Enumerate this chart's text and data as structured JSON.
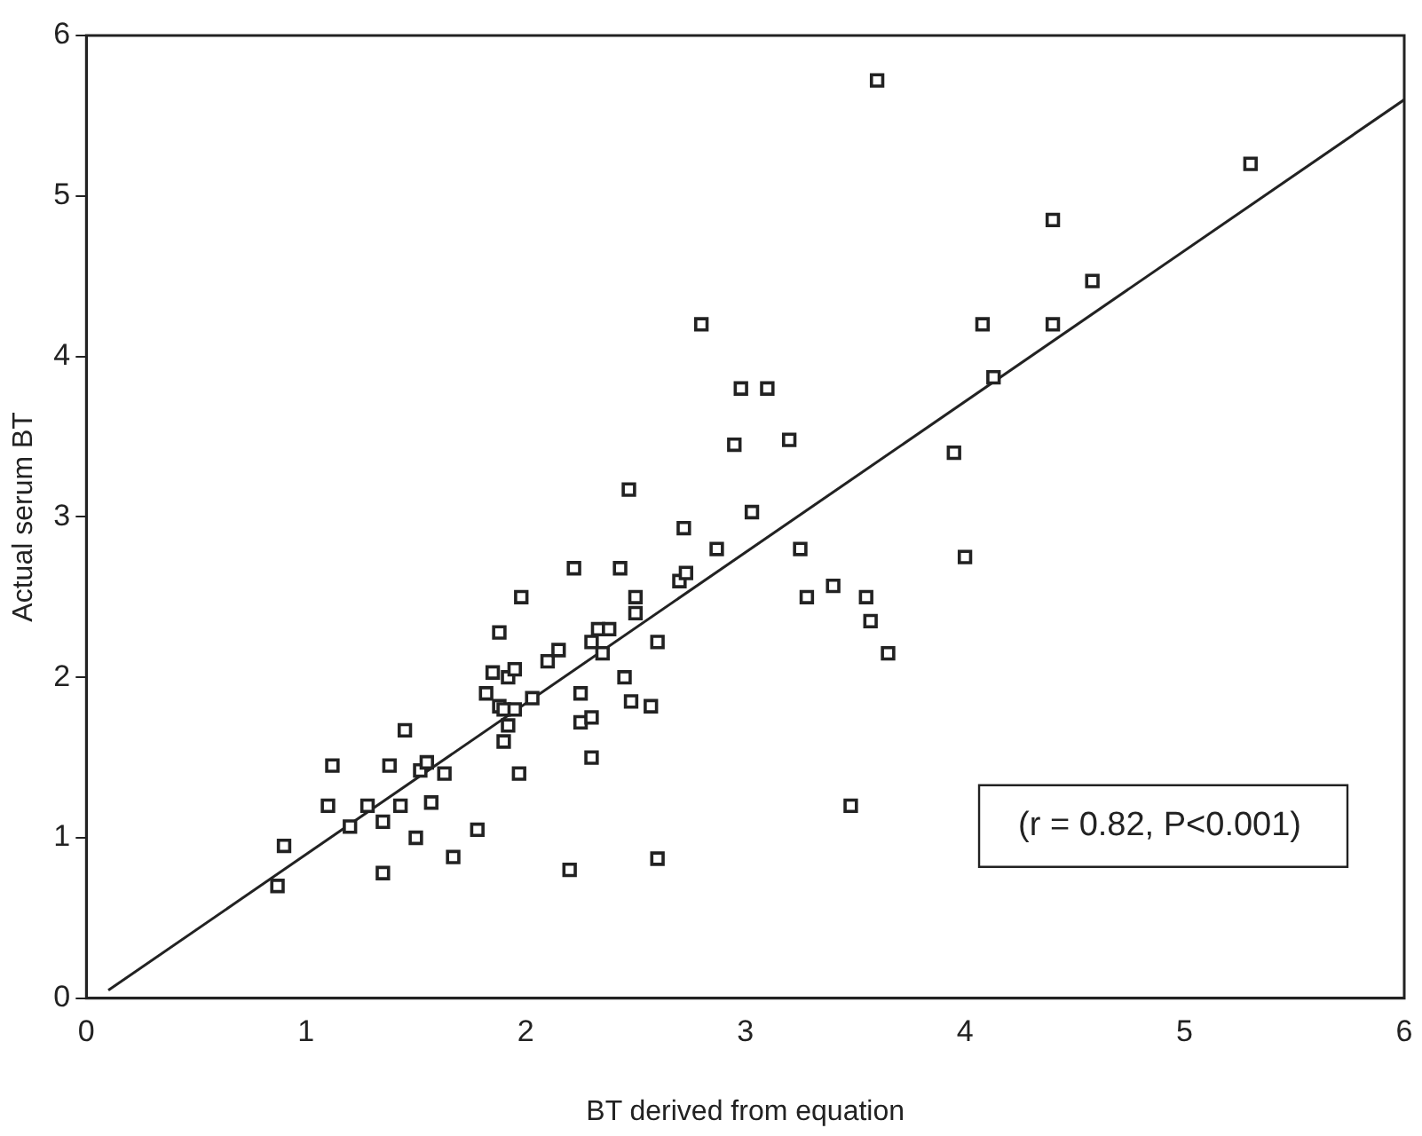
{
  "chart_data": {
    "type": "scatter",
    "xlabel": "BT derived from equation",
    "ylabel": "Actual serum BT",
    "annotations": [
      "(r = 0.82, P<0.001)"
    ],
    "xlim": [
      0,
      6
    ],
    "xticks": [
      0,
      1,
      2,
      3,
      4,
      5,
      6
    ],
    "ylim": [
      0,
      6
    ],
    "yticks": [
      0,
      1,
      2,
      3,
      4,
      5,
      6
    ],
    "grid": false,
    "legend": false,
    "marker": "square",
    "series": [
      {
        "type": "scatter",
        "color": "#222222",
        "x": [
          0.87,
          0.9,
          1.1,
          1.12,
          1.2,
          1.28,
          1.35,
          1.35,
          1.38,
          1.43,
          1.45,
          1.5,
          1.52,
          1.55,
          1.57,
          1.63,
          1.67,
          1.78,
          1.82,
          1.85,
          1.88,
          1.88,
          1.9,
          1.9,
          1.92,
          1.92,
          1.95,
          1.95,
          1.97,
          1.98,
          2.03,
          2.1,
          2.15,
          2.2,
          2.22,
          2.25,
          2.25,
          2.3,
          2.3,
          2.3,
          2.33,
          2.35,
          2.38,
          2.43,
          2.45,
          2.47,
          2.48,
          2.5,
          2.5,
          2.57,
          2.6,
          2.6,
          2.7,
          2.72,
          2.73,
          2.8,
          2.87,
          2.95,
          2.98,
          3.03,
          3.1,
          3.2,
          3.25,
          3.28,
          3.4,
          3.48,
          3.55,
          3.57,
          3.6,
          3.65,
          3.95,
          4.0,
          4.08,
          4.13,
          4.4,
          4.4,
          4.58,
          5.3
        ],
        "values": [
          0.7,
          0.95,
          1.2,
          1.45,
          1.07,
          1.2,
          0.78,
          1.1,
          1.45,
          1.2,
          1.67,
          1.0,
          1.42,
          1.47,
          1.22,
          1.4,
          0.88,
          1.05,
          1.9,
          2.03,
          2.28,
          1.82,
          1.6,
          1.8,
          1.7,
          2.0,
          1.8,
          2.05,
          1.4,
          2.5,
          1.87,
          2.1,
          2.17,
          0.8,
          2.68,
          1.9,
          1.72,
          1.75,
          1.5,
          2.22,
          2.3,
          2.15,
          2.3,
          2.68,
          2.0,
          3.17,
          1.85,
          2.5,
          2.4,
          1.82,
          0.87,
          2.22,
          2.6,
          2.93,
          2.65,
          4.2,
          2.8,
          3.45,
          3.8,
          3.03,
          3.8,
          3.48,
          2.8,
          2.5,
          2.57,
          1.2,
          2.5,
          2.35,
          5.72,
          2.15,
          3.4,
          2.75,
          4.2,
          3.87,
          4.85,
          4.2,
          4.47,
          5.2
        ]
      },
      {
        "type": "line",
        "color": "#222222",
        "marker": "none",
        "line_style": "solid",
        "x": [
          0.1,
          6
        ],
        "values": [
          0.05,
          5.6
        ]
      }
    ]
  }
}
